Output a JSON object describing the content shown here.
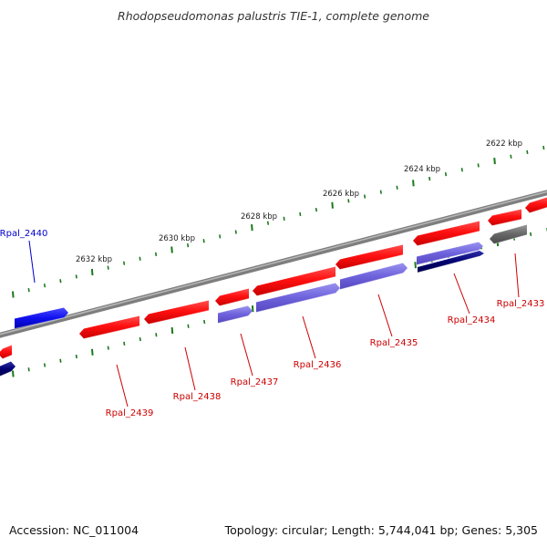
{
  "title": "Rhodopseudomonas palustris TIE-1, complete genome",
  "footer": {
    "accession": "Accession: NC_011004",
    "summary": "Topology: circular; Length: 5,744,041 bp; Genes: 5,305"
  },
  "scale_labels": [
    "2622 kbp",
    "2624 kbp",
    "2626 kbp",
    "2628 kbp",
    "2630 kbp",
    "2632 kbp"
  ],
  "genes": [
    {
      "label": "Rpal_2433",
      "color": "#cc0000"
    },
    {
      "label": "Rpal_2434",
      "color": "#cc0000"
    },
    {
      "label": "Rpal_2435",
      "color": "#cc0000"
    },
    {
      "label": "Rpal_2436",
      "color": "#cc0000"
    },
    {
      "label": "Rpal_2437",
      "color": "#cc0000"
    },
    {
      "label": "Rpal_2438",
      "color": "#cc0000"
    },
    {
      "label": "Rpal_2439",
      "color": "#cc0000"
    },
    {
      "label": "Rpal_2440",
      "color": "#0000cc"
    }
  ],
  "colors": {
    "backbone": "#8a8a8a",
    "tick": "#1a7a1a",
    "forward_cds": "#ff1a1a",
    "reverse_cds": "#7066dd",
    "highlight_cds": "#1a1aee",
    "dark_cds": "#000066",
    "other_feature": "#666666",
    "label_red": "#cc0000",
    "label_blue": "#0000cc"
  }
}
